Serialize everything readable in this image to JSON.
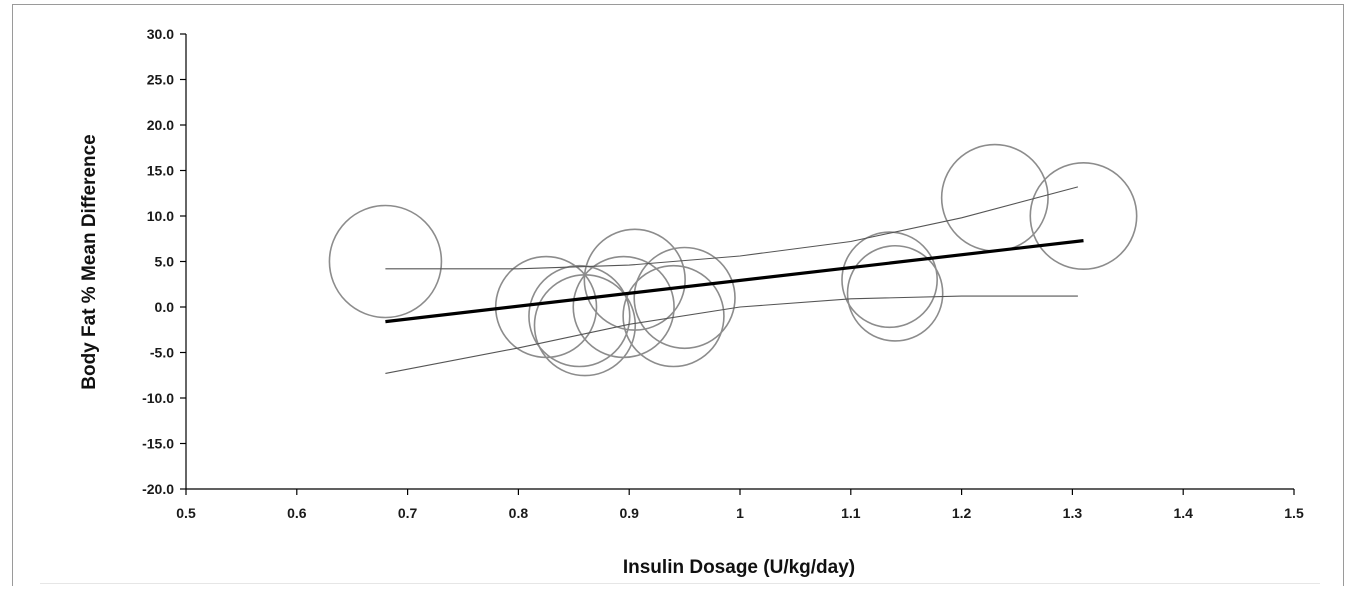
{
  "chart_data": {
    "type": "scatter",
    "title": "",
    "xlabel": "Insulin Dosage (U/kg/day)",
    "ylabel": "Body Fat % Mean Difference",
    "xlim": [
      0.5,
      1.5
    ],
    "ylim": [
      -20,
      30
    ],
    "x_ticks": [
      "0.5",
      "0.6",
      "0.7",
      "0.8",
      "0.9",
      "1",
      "1.1",
      "1.2",
      "1.3",
      "1.4",
      "1.5"
    ],
    "y_ticks": [
      "30.0",
      "25.0",
      "20.0",
      "15.0",
      "10.0",
      "5.0",
      "0.0",
      "-5.0",
      "-10.0",
      "-15.0",
      "-20.0"
    ],
    "grid": false,
    "legend": "none",
    "points": [
      {
        "x": 0.68,
        "y": 5.0,
        "weight": 1.0
      },
      {
        "x": 0.825,
        "y": 0.0,
        "weight": 0.9
      },
      {
        "x": 0.855,
        "y": -1.0,
        "weight": 0.9
      },
      {
        "x": 0.86,
        "y": -2.0,
        "weight": 0.9
      },
      {
        "x": 0.895,
        "y": 0.0,
        "weight": 0.9
      },
      {
        "x": 0.905,
        "y": 3.0,
        "weight": 0.9
      },
      {
        "x": 0.94,
        "y": -1.0,
        "weight": 0.9
      },
      {
        "x": 0.95,
        "y": 1.0,
        "weight": 0.9
      },
      {
        "x": 1.135,
        "y": 3.0,
        "weight": 0.85
      },
      {
        "x": 1.14,
        "y": 1.5,
        "weight": 0.85
      },
      {
        "x": 1.23,
        "y": 12.0,
        "weight": 0.95
      },
      {
        "x": 1.31,
        "y": 10.0,
        "weight": 0.95
      }
    ],
    "regression": {
      "x": [
        0.68,
        1.31
      ],
      "y": [
        -1.6,
        7.3
      ]
    },
    "upper_ci": {
      "x": [
        0.68,
        0.8,
        0.9,
        1.0,
        1.1,
        1.2,
        1.305
      ],
      "y": [
        4.2,
        4.2,
        4.6,
        5.6,
        7.2,
        9.8,
        13.2
      ]
    },
    "lower_ci": {
      "x": [
        0.68,
        0.8,
        0.9,
        1.0,
        1.1,
        1.2,
        1.305
      ],
      "y": [
        -7.3,
        -4.5,
        -1.9,
        0.0,
        0.9,
        1.2,
        1.2
      ]
    },
    "colors": {
      "circles": "#8c8c8c",
      "regression": "#000000",
      "ci": "#555555",
      "axis": "#000000"
    }
  }
}
